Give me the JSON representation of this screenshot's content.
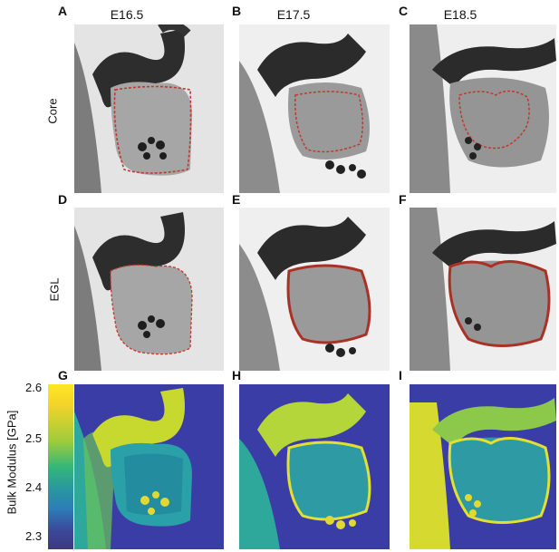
{
  "columns": [
    "E16.5",
    "E17.5",
    "E18.5"
  ],
  "rows": [
    "Core",
    "EGL"
  ],
  "panels": [
    "A",
    "B",
    "C",
    "D",
    "E",
    "F",
    "G",
    "H",
    "I"
  ],
  "colorbar": {
    "label": "Bulk Modulus [GPa]",
    "ticks": [
      "2.6",
      "2.5",
      "2.4",
      "2.3"
    ],
    "range": [
      2.28,
      2.6
    ]
  }
}
